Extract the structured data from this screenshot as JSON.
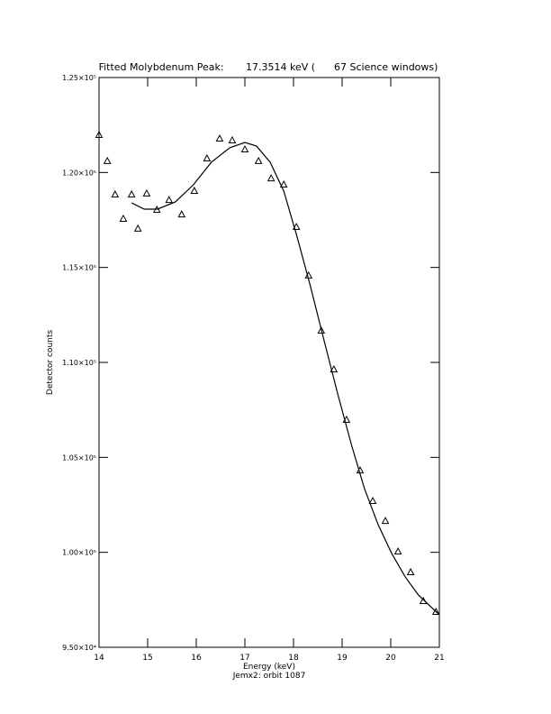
{
  "chart_data": {
    "type": "scatter",
    "title": "Fitted Molybdenum Peak:       17.3514 keV (      67 Science windows)",
    "x_label": "Energy (keV)",
    "subtitle": "Jemx2: orbit 1087",
    "y_label": "Detector counts",
    "xlim": [
      14,
      21
    ],
    "ylim": [
      95000,
      125000
    ],
    "xticks": [
      14,
      15,
      16,
      17,
      18,
      19,
      20,
      21
    ],
    "yticks": [
      {
        "value": 95000,
        "label": "9.50×10⁴"
      },
      {
        "value": 100000,
        "label": "1.00×10⁵"
      },
      {
        "value": 105000,
        "label": "1.05×10⁵"
      },
      {
        "value": 110000,
        "label": "1.10×10⁵"
      },
      {
        "value": 115000,
        "label": "1.15×10⁵"
      },
      {
        "value": 120000,
        "label": "1.20×10⁵"
      },
      {
        "value": 125000,
        "label": "1.25×10⁵"
      }
    ],
    "color": "#000000",
    "x": [
      14.0,
      14.17,
      14.33,
      14.5,
      14.67,
      14.8,
      14.98,
      15.19,
      15.44,
      15.7,
      15.96,
      16.22,
      16.48,
      16.74,
      17.0,
      17.28,
      17.54,
      17.8,
      18.06,
      18.31,
      18.57,
      18.83,
      19.09,
      19.37,
      19.63,
      19.89,
      20.15,
      20.41,
      20.67,
      20.93
    ],
    "values": [
      121960,
      120590,
      118830,
      117550,
      118830,
      117030,
      118880,
      118020,
      118540,
      117780,
      119020,
      120730,
      121770,
      121680,
      121200,
      120590,
      119680,
      119350,
      117120,
      114560,
      111660,
      109620,
      106960,
      104300,
      102690,
      101640,
      100030,
      98940,
      97420,
      96850
    ],
    "fit_x": [
      14.67,
      14.93,
      15.2,
      15.57,
      15.94,
      16.31,
      16.69,
      17.0,
      17.24,
      17.52,
      17.8,
      18.07,
      18.35,
      18.63,
      18.91,
      19.19,
      19.46,
      19.74,
      20.02,
      20.3,
      20.57,
      21.0
    ],
    "fit_values": [
      118400,
      118070,
      118070,
      118450,
      119350,
      120540,
      121300,
      121580,
      121390,
      120540,
      119020,
      116650,
      113990,
      111140,
      108340,
      105680,
      103350,
      101460,
      99940,
      98700,
      97750,
      96710
    ]
  }
}
